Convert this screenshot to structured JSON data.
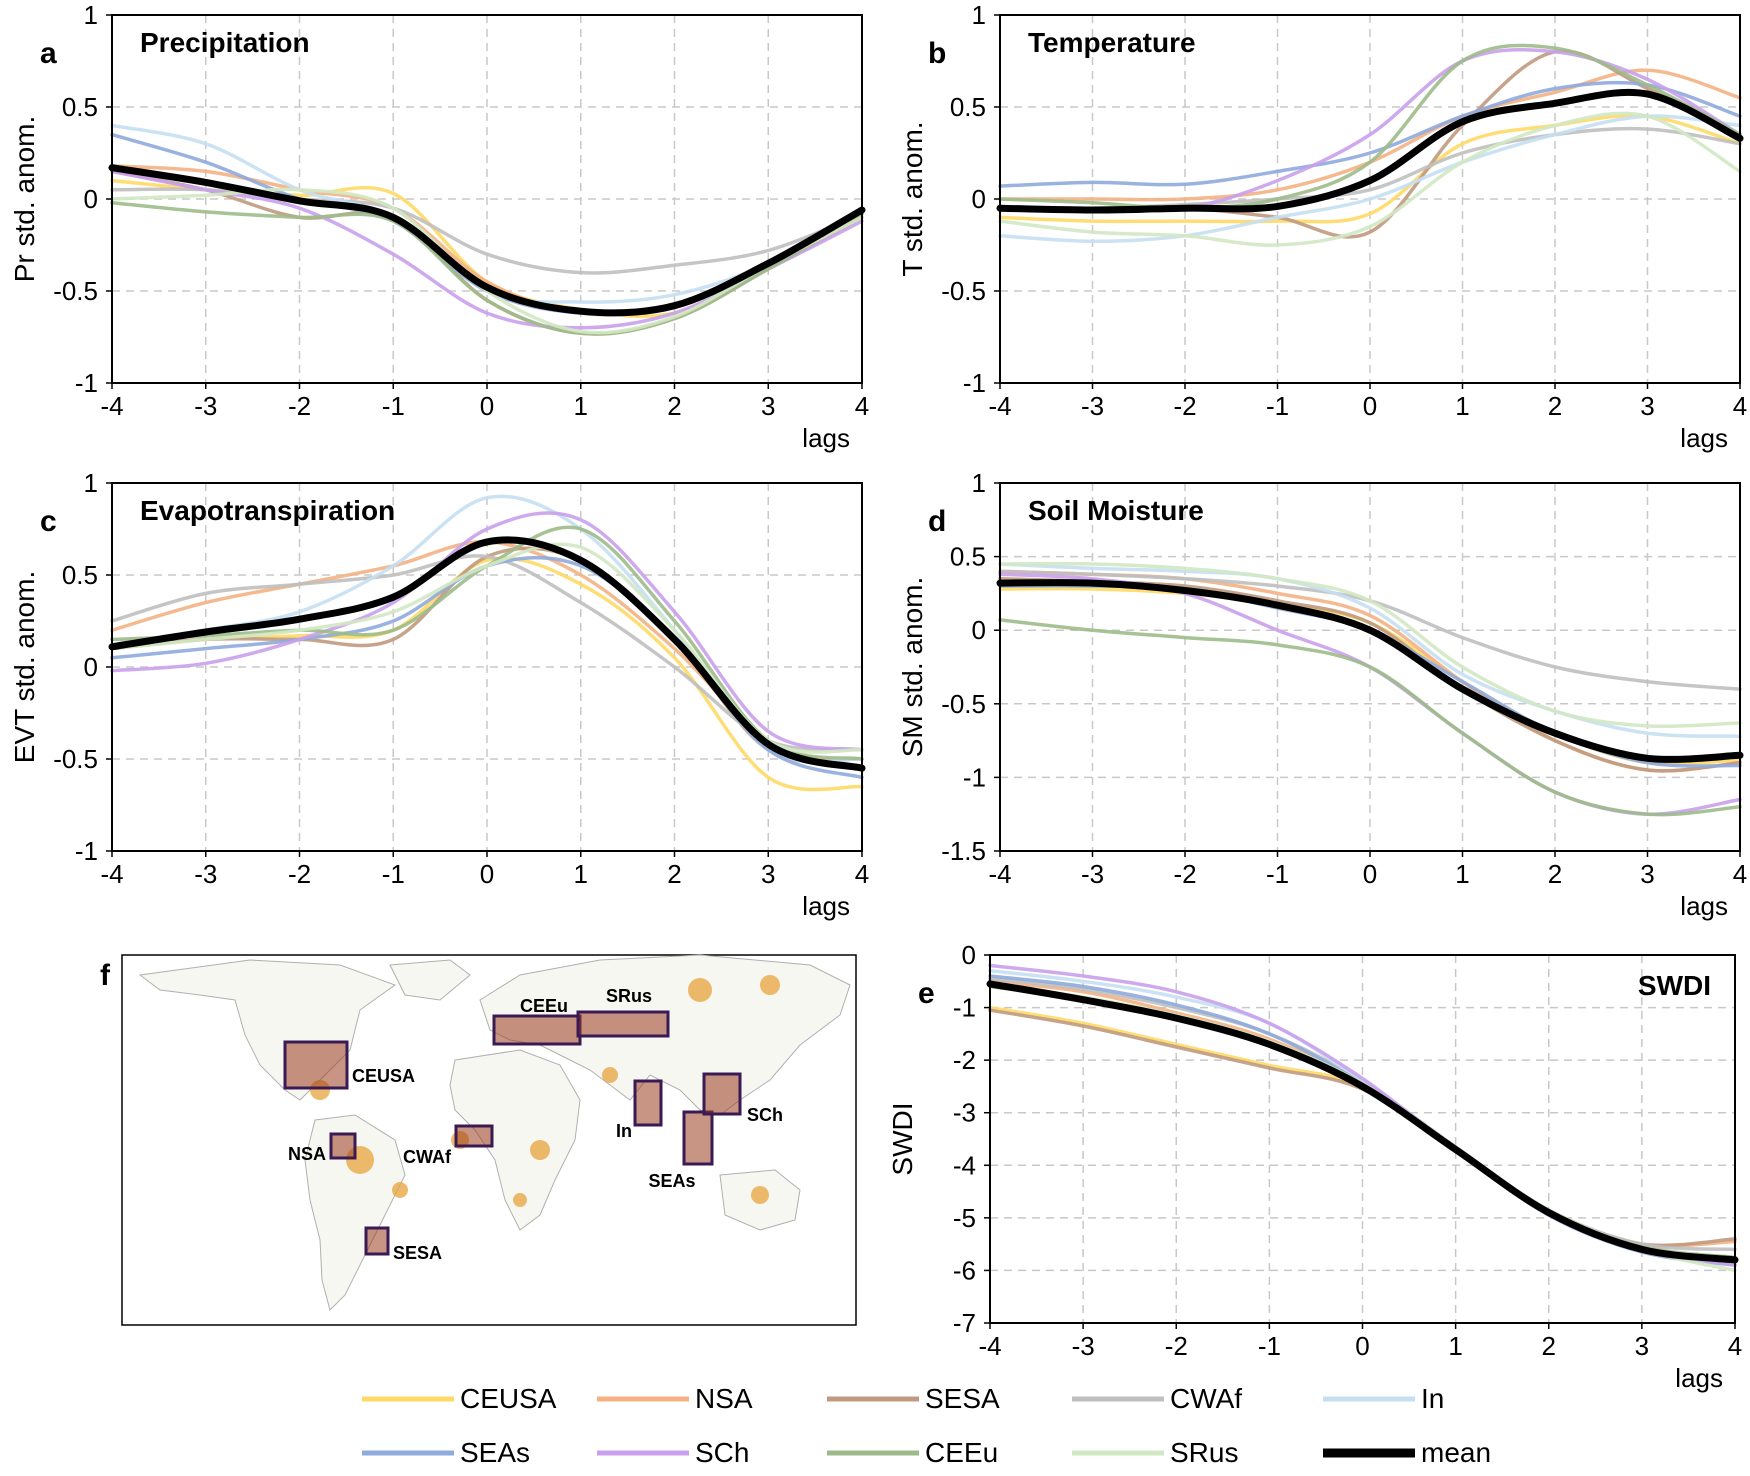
{
  "panels": [
    {
      "letter": "a",
      "title": "Precipitation",
      "ylabel": "Pr std. anom.",
      "xlabel": "lags"
    },
    {
      "letter": "b",
      "title": "Temperature",
      "ylabel": "T std. anom.",
      "xlabel": "lags"
    },
    {
      "letter": "c",
      "title": "Evapotranspiration",
      "ylabel": "EVT std. anom.",
      "xlabel": "lags"
    },
    {
      "letter": "d",
      "title": "Soil Moisture",
      "ylabel": "SM std. anom.",
      "xlabel": "lags"
    },
    {
      "letter": "e",
      "title": "SWDI",
      "ylabel": "SWDI",
      "xlabel": "lags"
    }
  ],
  "map": {
    "letter": "f",
    "regions": [
      "CEUSA",
      "NSA",
      "CWAf",
      "SESA",
      "CEEu",
      "SRus",
      "In",
      "SEAs",
      "SCh"
    ]
  },
  "legend": [
    {
      "name": "CEUSA",
      "color": "#ffd966"
    },
    {
      "name": "NSA",
      "color": "#f4b183"
    },
    {
      "name": "SESA",
      "color": "#c09a80"
    },
    {
      "name": "CWAf",
      "color": "#bfbfbf"
    },
    {
      "name": "In",
      "color": "#c5dff2"
    },
    {
      "name": "SEAs",
      "color": "#8faadc"
    },
    {
      "name": "SCh",
      "color": "#c9a0ec"
    },
    {
      "name": "CEEu",
      "color": "#9dbb8a"
    },
    {
      "name": "SRus",
      "color": "#d2e8c4"
    },
    {
      "name": "mean",
      "color": "#000000"
    }
  ],
  "chart_data": [
    {
      "type": "line",
      "panel": "a",
      "title": "Precipitation",
      "xlabel": "lags",
      "ylabel": "Pr std. anom.",
      "xlim": [
        -4,
        4
      ],
      "ylim": [
        -1,
        1
      ],
      "xticks": [
        -4,
        -3,
        -2,
        -1,
        0,
        1,
        2,
        3,
        4
      ],
      "yticks": [
        -1,
        -0.5,
        0,
        0.5,
        1
      ],
      "grid": true,
      "x": [
        -4,
        -3,
        -2,
        -1,
        0,
        1,
        2,
        3,
        4
      ],
      "series": [
        {
          "name": "CEUSA",
          "values": [
            0.1,
            0.05,
            0.02,
            0.03,
            -0.45,
            -0.6,
            -0.62,
            -0.38,
            -0.1
          ]
        },
        {
          "name": "NSA",
          "values": [
            0.18,
            0.15,
            0.05,
            -0.05,
            -0.45,
            -0.62,
            -0.58,
            -0.35,
            -0.1
          ]
        },
        {
          "name": "SESA",
          "values": [
            0.15,
            0.05,
            -0.1,
            -0.1,
            -0.55,
            -0.73,
            -0.65,
            -0.38,
            -0.1
          ]
        },
        {
          "name": "CWAf",
          "values": [
            0.05,
            0.05,
            0.0,
            -0.05,
            -0.3,
            -0.4,
            -0.36,
            -0.28,
            -0.08
          ]
        },
        {
          "name": "In",
          "values": [
            0.4,
            0.3,
            0.05,
            -0.1,
            -0.5,
            -0.56,
            -0.52,
            -0.35,
            -0.05
          ]
        },
        {
          "name": "SEAs",
          "values": [
            0.35,
            0.2,
            0.0,
            -0.12,
            -0.5,
            -0.62,
            -0.58,
            -0.35,
            -0.08
          ]
        },
        {
          "name": "SCh",
          "values": [
            0.15,
            0.05,
            -0.05,
            -0.3,
            -0.62,
            -0.7,
            -0.62,
            -0.38,
            -0.12
          ]
        },
        {
          "name": "CEEu",
          "values": [
            -0.02,
            -0.07,
            -0.1,
            -0.12,
            -0.55,
            -0.73,
            -0.65,
            -0.38,
            -0.08
          ]
        },
        {
          "name": "SRus",
          "values": [
            0.0,
            0.02,
            0.05,
            -0.05,
            -0.5,
            -0.72,
            -0.64,
            -0.36,
            -0.1
          ]
        },
        {
          "name": "mean",
          "values": [
            0.17,
            0.09,
            -0.01,
            -0.1,
            -0.48,
            -0.61,
            -0.58,
            -0.35,
            -0.06
          ]
        }
      ]
    },
    {
      "type": "line",
      "panel": "b",
      "title": "Temperature",
      "xlabel": "lags",
      "ylabel": "T std. anom.",
      "xlim": [
        -4,
        4
      ],
      "ylim": [
        -1,
        1
      ],
      "xticks": [
        -4,
        -3,
        -2,
        -1,
        0,
        1,
        2,
        3,
        4
      ],
      "yticks": [
        -1,
        -0.5,
        0,
        0.5,
        1
      ],
      "grid": true,
      "x": [
        -4,
        -3,
        -2,
        -1,
        0,
        1,
        2,
        3,
        4
      ],
      "series": [
        {
          "name": "CEUSA",
          "values": [
            -0.1,
            -0.12,
            -0.12,
            -0.12,
            -0.08,
            0.3,
            0.4,
            0.45,
            0.3
          ]
        },
        {
          "name": "NSA",
          "values": [
            0.0,
            0.0,
            0.0,
            0.05,
            0.2,
            0.45,
            0.58,
            0.7,
            0.55
          ]
        },
        {
          "name": "SESA",
          "values": [
            -0.05,
            -0.05,
            -0.05,
            -0.1,
            -0.18,
            0.4,
            0.8,
            0.6,
            0.35
          ]
        },
        {
          "name": "CWAf",
          "values": [
            -0.05,
            -0.05,
            -0.03,
            0.0,
            0.05,
            0.25,
            0.35,
            0.38,
            0.3
          ]
        },
        {
          "name": "In",
          "values": [
            -0.2,
            -0.23,
            -0.2,
            -0.1,
            0.0,
            0.2,
            0.35,
            0.45,
            0.4
          ]
        },
        {
          "name": "SEAs",
          "values": [
            0.07,
            0.09,
            0.08,
            0.15,
            0.25,
            0.45,
            0.6,
            0.62,
            0.45
          ]
        },
        {
          "name": "SCh",
          "values": [
            -0.05,
            -0.05,
            -0.05,
            0.1,
            0.35,
            0.75,
            0.8,
            0.65,
            0.35
          ]
        },
        {
          "name": "CEEu",
          "values": [
            0.0,
            -0.02,
            -0.05,
            0.0,
            0.2,
            0.75,
            0.82,
            0.62,
            0.35
          ]
        },
        {
          "name": "SRus",
          "values": [
            -0.12,
            -0.18,
            -0.2,
            -0.25,
            -0.15,
            0.2,
            0.4,
            0.45,
            0.15
          ]
        },
        {
          "name": "mean",
          "values": [
            -0.05,
            -0.06,
            -0.05,
            -0.04,
            0.1,
            0.42,
            0.52,
            0.57,
            0.33
          ]
        }
      ]
    },
    {
      "type": "line",
      "panel": "c",
      "title": "Evapotranspiration",
      "xlabel": "lags",
      "ylabel": "EVT std. anom.",
      "xlim": [
        -4,
        4
      ],
      "ylim": [
        -1,
        1
      ],
      "xticks": [
        -4,
        -3,
        -2,
        -1,
        0,
        1,
        2,
        3,
        4
      ],
      "yticks": [
        -1,
        -0.5,
        0,
        0.5,
        1
      ],
      "grid": true,
      "x": [
        -4,
        -3,
        -2,
        -1,
        0,
        1,
        2,
        3,
        4
      ],
      "series": [
        {
          "name": "CEUSA",
          "values": [
            0.1,
            0.15,
            0.17,
            0.2,
            0.58,
            0.45,
            0.05,
            -0.6,
            -0.65
          ]
        },
        {
          "name": "NSA",
          "values": [
            0.2,
            0.35,
            0.45,
            0.55,
            0.68,
            0.5,
            0.1,
            -0.4,
            -0.55
          ]
        },
        {
          "name": "SESA",
          "values": [
            0.1,
            0.15,
            0.15,
            0.15,
            0.6,
            0.58,
            0.15,
            -0.45,
            -0.5
          ]
        },
        {
          "name": "CWAf",
          "values": [
            0.25,
            0.4,
            0.45,
            0.5,
            0.6,
            0.35,
            0.0,
            -0.4,
            -0.45
          ]
        },
        {
          "name": "In",
          "values": [
            0.1,
            0.2,
            0.3,
            0.55,
            0.92,
            0.75,
            0.2,
            -0.45,
            -0.5
          ]
        },
        {
          "name": "SEAs",
          "values": [
            0.05,
            0.1,
            0.15,
            0.25,
            0.55,
            0.55,
            0.15,
            -0.45,
            -0.6
          ]
        },
        {
          "name": "SCh",
          "values": [
            -0.02,
            0.02,
            0.15,
            0.35,
            0.75,
            0.8,
            0.3,
            -0.35,
            -0.45
          ]
        },
        {
          "name": "CEEu",
          "values": [
            0.15,
            0.17,
            0.2,
            0.2,
            0.55,
            0.75,
            0.25,
            -0.4,
            -0.5
          ]
        },
        {
          "name": "SRus",
          "values": [
            0.1,
            0.15,
            0.2,
            0.3,
            0.55,
            0.65,
            0.2,
            -0.4,
            -0.45
          ]
        },
        {
          "name": "mean",
          "values": [
            0.11,
            0.19,
            0.26,
            0.38,
            0.68,
            0.58,
            0.15,
            -0.42,
            -0.55
          ]
        }
      ]
    },
    {
      "type": "line",
      "panel": "d",
      "title": "Soil Moisture",
      "xlabel": "lags",
      "ylabel": "SM std. anom.",
      "xlim": [
        -4,
        4
      ],
      "ylim": [
        -1.5,
        1
      ],
      "xticks": [
        -4,
        -3,
        -2,
        -1,
        0,
        1,
        2,
        3,
        4
      ],
      "yticks": [
        -1.5,
        -1,
        -0.5,
        0,
        0.5,
        1
      ],
      "grid": true,
      "x": [
        -4,
        -3,
        -2,
        -1,
        0,
        1,
        2,
        3,
        4
      ],
      "series": [
        {
          "name": "CEUSA",
          "values": [
            0.28,
            0.28,
            0.25,
            0.18,
            0.05,
            -0.35,
            -0.7,
            -0.9,
            -0.88
          ]
        },
        {
          "name": "NSA",
          "values": [
            0.4,
            0.38,
            0.35,
            0.25,
            0.1,
            -0.35,
            -0.75,
            -0.95,
            -0.9
          ]
        },
        {
          "name": "SESA",
          "values": [
            0.35,
            0.33,
            0.3,
            0.2,
            0.05,
            -0.4,
            -0.75,
            -0.95,
            -0.9
          ]
        },
        {
          "name": "CWAf",
          "values": [
            0.4,
            0.38,
            0.35,
            0.3,
            0.2,
            -0.05,
            -0.25,
            -0.35,
            -0.4
          ]
        },
        {
          "name": "In",
          "values": [
            0.45,
            0.42,
            0.4,
            0.35,
            0.15,
            -0.3,
            -0.55,
            -0.7,
            -0.72
          ]
        },
        {
          "name": "SEAs",
          "values": [
            0.3,
            0.3,
            0.28,
            0.15,
            0.0,
            -0.35,
            -0.7,
            -0.9,
            -0.92
          ]
        },
        {
          "name": "SCh",
          "values": [
            0.38,
            0.35,
            0.25,
            0.0,
            -0.25,
            -0.7,
            -1.1,
            -1.25,
            -1.15
          ]
        },
        {
          "name": "CEEu",
          "values": [
            0.07,
            0.0,
            -0.05,
            -0.1,
            -0.25,
            -0.7,
            -1.1,
            -1.25,
            -1.2
          ]
        },
        {
          "name": "SRus",
          "values": [
            0.45,
            0.45,
            0.42,
            0.35,
            0.2,
            -0.25,
            -0.55,
            -0.65,
            -0.63
          ]
        },
        {
          "name": "mean",
          "values": [
            0.32,
            0.32,
            0.27,
            0.17,
            0.0,
            -0.4,
            -0.7,
            -0.87,
            -0.85
          ]
        }
      ]
    },
    {
      "type": "line",
      "panel": "e",
      "title": "SWDI",
      "xlabel": "lags",
      "ylabel": "SWDI",
      "xlim": [
        -4,
        4
      ],
      "ylim": [
        -7,
        0
      ],
      "xticks": [
        -4,
        -3,
        -2,
        -1,
        0,
        1,
        2,
        3,
        4
      ],
      "yticks": [
        -7,
        -6,
        -5,
        -4,
        -3,
        -2,
        -1,
        0
      ],
      "grid": true,
      "x": [
        -4,
        -3,
        -2,
        -1,
        0,
        1,
        2,
        3,
        4
      ],
      "series": [
        {
          "name": "CEUSA",
          "values": [
            -1.0,
            -1.3,
            -1.7,
            -2.1,
            -2.5,
            -3.7,
            -4.9,
            -5.55,
            -5.8
          ]
        },
        {
          "name": "NSA",
          "values": [
            -0.5,
            -0.7,
            -1.1,
            -1.6,
            -2.45,
            -3.7,
            -4.9,
            -5.5,
            -5.45
          ]
        },
        {
          "name": "SESA",
          "values": [
            -1.05,
            -1.35,
            -1.75,
            -2.15,
            -2.55,
            -3.7,
            -4.9,
            -5.5,
            -5.4
          ]
        },
        {
          "name": "CWAf",
          "values": [
            -0.45,
            -0.65,
            -1.0,
            -1.5,
            -2.4,
            -3.65,
            -4.85,
            -5.5,
            -5.6
          ]
        },
        {
          "name": "In",
          "values": [
            -0.3,
            -0.5,
            -0.8,
            -1.3,
            -2.4,
            -3.7,
            -4.9,
            -5.6,
            -5.85
          ]
        },
        {
          "name": "SEAs",
          "values": [
            -0.4,
            -0.6,
            -0.95,
            -1.5,
            -2.45,
            -3.7,
            -4.95,
            -5.65,
            -5.9
          ]
        },
        {
          "name": "SCh",
          "values": [
            -0.2,
            -0.4,
            -0.7,
            -1.3,
            -2.35,
            -3.7,
            -4.9,
            -5.6,
            -5.9
          ]
        },
        {
          "name": "CEEu",
          "values": [
            -0.6,
            -0.85,
            -1.2,
            -1.7,
            -2.5,
            -3.7,
            -4.9,
            -5.55,
            -5.75
          ]
        },
        {
          "name": "SRus",
          "values": [
            -0.55,
            -0.8,
            -1.15,
            -1.65,
            -2.45,
            -3.7,
            -4.85,
            -5.6,
            -6.0
          ]
        },
        {
          "name": "mean",
          "values": [
            -0.55,
            -0.85,
            -1.2,
            -1.7,
            -2.5,
            -3.7,
            -4.9,
            -5.6,
            -5.8
          ]
        }
      ]
    }
  ]
}
